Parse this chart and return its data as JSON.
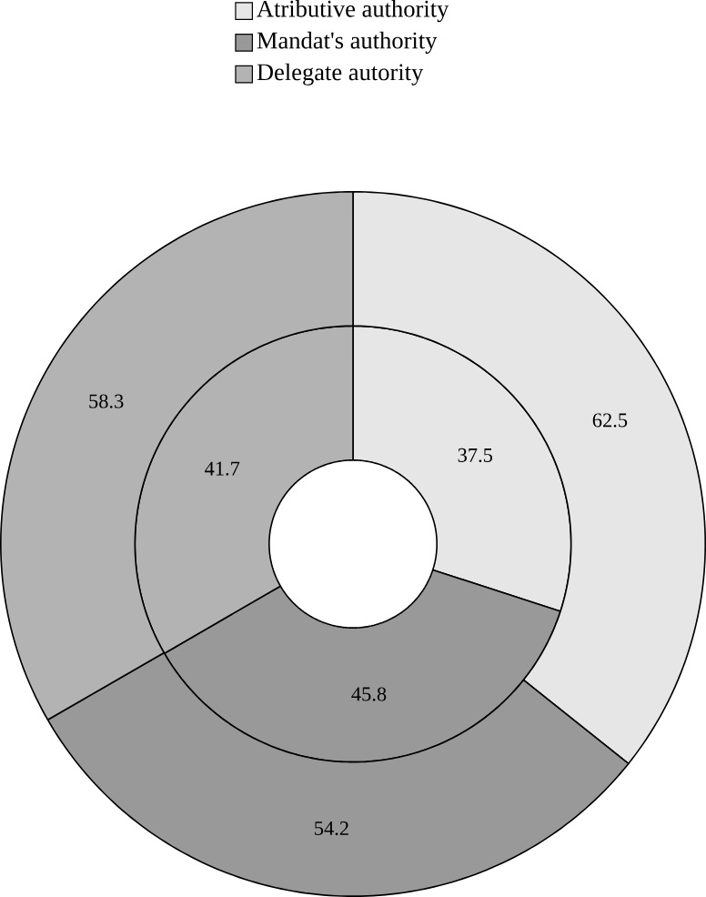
{
  "chart_data": {
    "type": "donut",
    "categories": [
      "Atributive authority",
      "Mandat's authority",
      "Delegate autority"
    ],
    "colors": [
      "#e6e6e6",
      "#999999",
      "#b3b3b3"
    ],
    "series": [
      {
        "values": [
          37.5,
          45.8,
          41.7
        ]
      },
      {
        "values": [
          62.5,
          54.2,
          58.3
        ]
      }
    ],
    "data_labels": true,
    "legend": "top"
  }
}
